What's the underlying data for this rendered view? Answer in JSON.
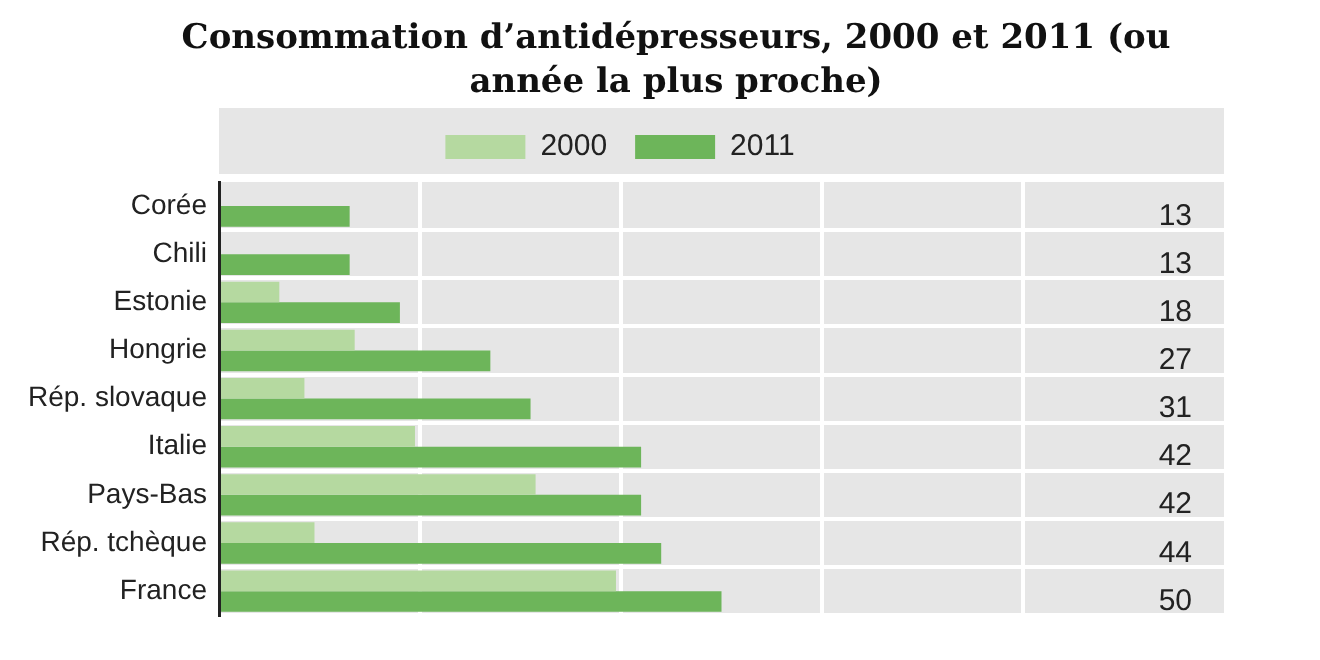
{
  "chart_data": {
    "type": "bar",
    "orientation": "horizontal",
    "title": "Consommation d’antidépresseurs, 2000 et 2011 (ou année la plus proche)",
    "categories": [
      "Corée",
      "Chili",
      "Estonie",
      "Hongrie",
      "Rép. slovaque",
      "Italie",
      "Pays-Bas",
      "Rép. tchèque",
      "France"
    ],
    "series": [
      {
        "name": "2000",
        "color": "#b5d9a0",
        "values": [
          null,
          null,
          6,
          13.5,
          8.5,
          19.5,
          31.5,
          9.5,
          39.5
        ]
      },
      {
        "name": "2011",
        "color": "#6db55a",
        "values": [
          13,
          13,
          18,
          27,
          31,
          42,
          42,
          44,
          50
        ],
        "value_labels": [
          "13",
          "13",
          "18",
          "27",
          "31",
          "42",
          "42",
          "44",
          "50"
        ]
      }
    ],
    "xlim": [
      0,
      100
    ],
    "xticks": [
      0,
      20,
      40,
      60,
      80
    ],
    "tick_labels": "y",
    "grid": true,
    "legend": "top"
  }
}
